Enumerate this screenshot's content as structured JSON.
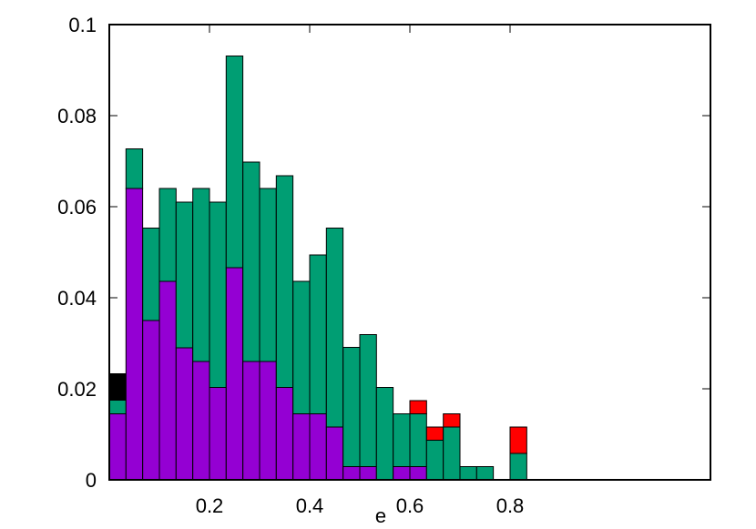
{
  "chart_data": {
    "type": "bar",
    "stacked": true,
    "xlabel": "e",
    "ylabel": "",
    "title": "",
    "xlim": [
      0,
      1.2
    ],
    "ylim": [
      0,
      0.1
    ],
    "bin_width": 0.0333,
    "x_ticks": [
      "0.2",
      "0.4",
      "0.6",
      "0.8"
    ],
    "x_tick_values": [
      0.2,
      0.4,
      0.6,
      0.8
    ],
    "y_ticks": [
      "0",
      "0.02",
      "0.04",
      "0.06",
      "0.08",
      "0.1"
    ],
    "y_tick_values": [
      0,
      0.02,
      0.04,
      0.06,
      0.08,
      0.1
    ],
    "grid": false,
    "bins": [
      0.0,
      0.0333,
      0.0667,
      0.1,
      0.1333,
      0.1667,
      0.2,
      0.2333,
      0.2667,
      0.3,
      0.3333,
      0.3667,
      0.4,
      0.4333,
      0.4667,
      0.5,
      0.5333,
      0.5667,
      0.6,
      0.6333,
      0.6667,
      0.7,
      0.7333,
      0.7667,
      0.8,
      0.8333,
      0.8667,
      0.9,
      0.9333
    ],
    "series": [
      {
        "color": "#9400d3",
        "values": [
          0.0145,
          0.064,
          0.035,
          0.0436,
          0.029,
          0.026,
          0.0203,
          0.0466,
          0.026,
          0.026,
          0.0203,
          0.0145,
          0.0145,
          0.0116,
          0.0029,
          0.0029,
          0,
          0.0029,
          0.0029,
          0,
          0,
          0,
          0,
          0,
          0,
          0,
          0,
          0,
          0
        ]
      },
      {
        "color": "#009e73",
        "values": [
          0.003,
          0.0087,
          0.0203,
          0.0204,
          0.032,
          0.038,
          0.0407,
          0.0465,
          0.0438,
          0.038,
          0.0465,
          0.0291,
          0.0349,
          0.0437,
          0.0262,
          0.029,
          0.0203,
          0.0116,
          0.0116,
          0.0087,
          0.0116,
          0.0029,
          0.0029,
          0,
          0.0058,
          0,
          0,
          0,
          0
        ]
      },
      {
        "color": "#ff0000",
        "values": [
          0,
          0,
          0,
          0,
          0,
          0,
          0,
          0,
          0,
          0,
          0,
          0,
          0,
          0,
          0,
          0,
          0,
          0,
          0.0029,
          0.0029,
          0.0029,
          0,
          0,
          0,
          0.0058,
          0,
          0,
          0,
          0
        ]
      },
      {
        "color": "#000000",
        "values": [
          0.0058,
          0,
          0,
          0,
          0,
          0,
          0,
          0,
          0,
          0,
          0,
          0,
          0,
          0,
          0,
          0,
          0,
          0,
          0,
          0,
          0,
          0,
          0,
          0,
          0,
          0,
          0,
          0,
          0
        ]
      }
    ]
  }
}
